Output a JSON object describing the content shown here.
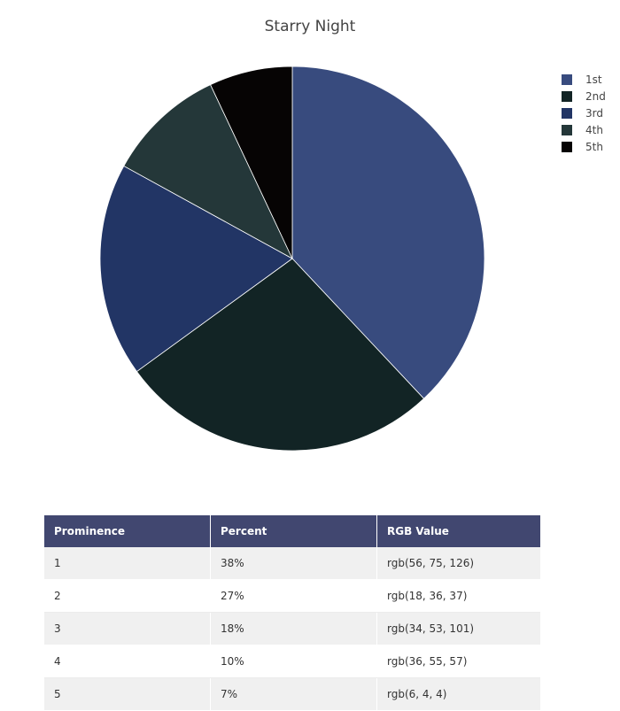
{
  "chart_data": {
    "type": "pie",
    "title": "Starry Night",
    "categories": [
      "1st",
      "2nd",
      "3rd",
      "4th",
      "5th"
    ],
    "values": [
      38,
      27,
      18,
      10,
      7
    ],
    "colors": [
      "#384b7e",
      "#122425",
      "#223565",
      "#243739",
      "#060404"
    ],
    "legend_position": "top-right",
    "direction": "clockwise",
    "start": "12 o'clock"
  },
  "legend": [
    {
      "label": "1st",
      "color": "#384b7e"
    },
    {
      "label": "2nd",
      "color": "#122425"
    },
    {
      "label": "3rd",
      "color": "#223565"
    },
    {
      "label": "4th",
      "color": "#243739"
    },
    {
      "label": "5th",
      "color": "#060404"
    }
  ],
  "table": {
    "headers": [
      "Prominence",
      "Percent",
      "RGB Value"
    ],
    "rows": [
      [
        "1",
        "38%",
        "rgb(56, 75, 126)"
      ],
      [
        "2",
        "27%",
        "rgb(18, 36, 37)"
      ],
      [
        "3",
        "18%",
        "rgb(34, 53, 101)"
      ],
      [
        "4",
        "10%",
        "rgb(36, 55, 57)"
      ],
      [
        "5",
        "7%",
        "rgb(6, 4, 4)"
      ]
    ]
  }
}
